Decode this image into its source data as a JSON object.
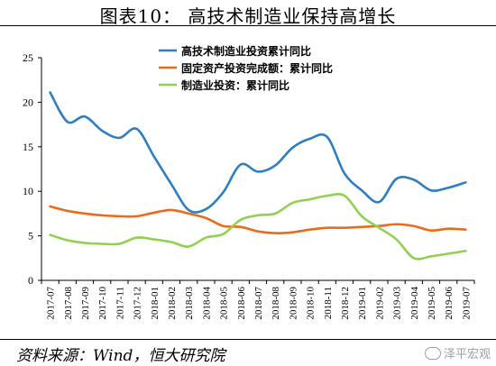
{
  "title": "图表10：  高技术制造业保持高增长",
  "source": "资料来源：Wind，恒大研究院",
  "watermark": "泽平宏观",
  "chart_data": {
    "type": "line",
    "x": [
      "2017-07",
      "2017-08",
      "2017-09",
      "2017-10",
      "2017-11",
      "2017-12",
      "2018-01",
      "2018-02",
      "2018-03",
      "2018-04",
      "2018-05",
      "2018-06",
      "2018-07",
      "2018-08",
      "2018-09",
      "2018-10",
      "2018-11",
      "2018-12",
      "2019-01",
      "2019-02",
      "2019-03",
      "2019-04",
      "2019-05",
      "2019-06",
      "2019-07"
    ],
    "ylim": [
      0,
      25
    ],
    "yticks": [
      0,
      5,
      10,
      15,
      20,
      25
    ],
    "legend_position": "top-center",
    "series": [
      {
        "name": "高技术制造业投资累计同比",
        "color": "#2f7ec1",
        "values": [
          21.1,
          17.8,
          18.4,
          16.8,
          16.0,
          17.0,
          13.9,
          10.8,
          7.9,
          8.0,
          9.9,
          13.0,
          12.2,
          12.9,
          14.9,
          15.9,
          16.1,
          12.0,
          10.1,
          8.8,
          11.4,
          11.3,
          10.1,
          10.4,
          11.0
        ]
      },
      {
        "name": "固定资产投资完成额：累计同比",
        "color": "#eb6b1c",
        "values": [
          8.3,
          7.8,
          7.5,
          7.3,
          7.2,
          7.2,
          7.6,
          7.9,
          7.5,
          7.0,
          6.1,
          6.0,
          5.5,
          5.3,
          5.4,
          5.7,
          5.9,
          5.9,
          6.0,
          6.1,
          6.3,
          6.1,
          5.6,
          5.8,
          5.7
        ]
      },
      {
        "name": "制造业投资：累计同比",
        "color": "#92d050",
        "values": [
          5.1,
          4.5,
          4.2,
          4.1,
          4.1,
          4.8,
          4.6,
          4.3,
          3.8,
          4.8,
          5.2,
          6.8,
          7.3,
          7.5,
          8.7,
          9.1,
          9.5,
          9.5,
          7.2,
          5.9,
          4.6,
          2.5,
          2.7,
          3.0,
          3.3
        ]
      }
    ]
  }
}
